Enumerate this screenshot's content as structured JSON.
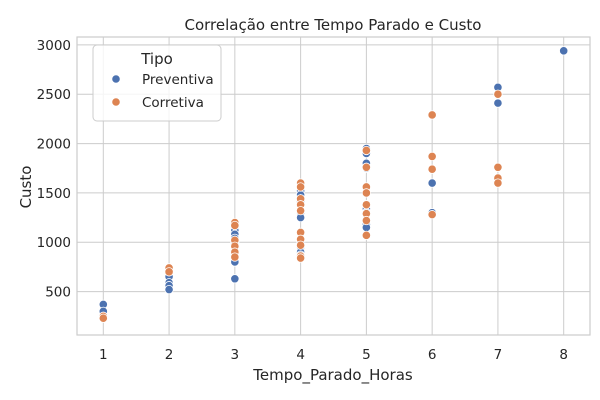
{
  "chart_data": {
    "type": "scatter",
    "title": "Correlação entre Tempo Parado e Custo",
    "xlabel": "Tempo_Parado_Horas",
    "ylabel": "Custo",
    "xlim": [
      0.6,
      8.4
    ],
    "ylim": [
      60,
      3080
    ],
    "x_ticks": [
      1,
      2,
      3,
      4,
      5,
      6,
      7,
      8
    ],
    "y_ticks": [
      500,
      1000,
      1500,
      2000,
      2500,
      3000
    ],
    "grid": true,
    "legend": {
      "title": "Tipo",
      "placement": "top-left"
    },
    "series": [
      {
        "name": "Preventiva",
        "color": "#4c72b0",
        "points": [
          [
            1,
            370
          ],
          [
            1,
            300
          ],
          [
            2,
            690
          ],
          [
            2,
            650
          ],
          [
            2,
            590
          ],
          [
            2,
            560
          ],
          [
            2,
            520
          ],
          [
            3,
            1150
          ],
          [
            3,
            1120
          ],
          [
            3,
            1080
          ],
          [
            3,
            1040
          ],
          [
            3,
            1000
          ],
          [
            3,
            950
          ],
          [
            3,
            900
          ],
          [
            3,
            800
          ],
          [
            3,
            630
          ],
          [
            4,
            1560
          ],
          [
            4,
            1520
          ],
          [
            4,
            1480
          ],
          [
            4,
            1440
          ],
          [
            4,
            1410
          ],
          [
            4,
            1300
          ],
          [
            4,
            1250
          ],
          [
            4,
            1000
          ],
          [
            4,
            950
          ],
          [
            4,
            900
          ],
          [
            4,
            870
          ],
          [
            5,
            1950
          ],
          [
            5,
            1900
          ],
          [
            5,
            1800
          ],
          [
            5,
            1750
          ],
          [
            5,
            1380
          ],
          [
            5,
            1340
          ],
          [
            5,
            1300
          ],
          [
            5,
            1230
          ],
          [
            5,
            1180
          ],
          [
            5,
            1150
          ],
          [
            6,
            1600
          ],
          [
            6,
            1300
          ],
          [
            7,
            2570
          ],
          [
            7,
            2410
          ],
          [
            8,
            2940
          ]
        ]
      },
      {
        "name": "Corretiva",
        "color": "#dd8452",
        "points": [
          [
            1,
            250
          ],
          [
            1,
            230
          ],
          [
            2,
            740
          ],
          [
            2,
            700
          ],
          [
            3,
            1200
          ],
          [
            3,
            1170
          ],
          [
            3,
            1020
          ],
          [
            3,
            960
          ],
          [
            3,
            900
          ],
          [
            3,
            850
          ],
          [
            4,
            1600
          ],
          [
            4,
            1560
          ],
          [
            4,
            1440
          ],
          [
            4,
            1380
          ],
          [
            4,
            1320
          ],
          [
            4,
            1100
          ],
          [
            4,
            1030
          ],
          [
            4,
            970
          ],
          [
            4,
            860
          ],
          [
            4,
            840
          ],
          [
            5,
            1930
          ],
          [
            5,
            1760
          ],
          [
            5,
            1560
          ],
          [
            5,
            1500
          ],
          [
            5,
            1380
          ],
          [
            5,
            1290
          ],
          [
            5,
            1220
          ],
          [
            5,
            1070
          ],
          [
            6,
            2290
          ],
          [
            6,
            1870
          ],
          [
            6,
            1740
          ],
          [
            6,
            1280
          ],
          [
            7,
            2500
          ],
          [
            7,
            1760
          ],
          [
            7,
            1650
          ],
          [
            7,
            1600
          ]
        ]
      }
    ]
  }
}
